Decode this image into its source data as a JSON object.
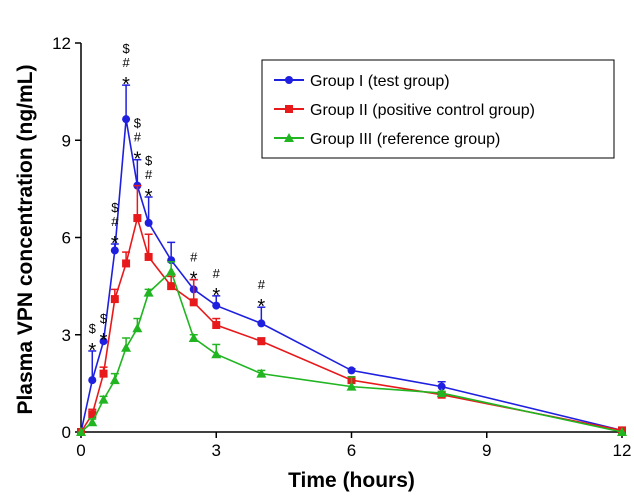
{
  "chart_data": {
    "type": "line",
    "title": "",
    "xlabel": "Time (hours)",
    "ylabel": "Plasma VPN concentration (ng/mL)",
    "xlim": [
      0,
      12
    ],
    "ylim": [
      0,
      12
    ],
    "xticks": [
      0,
      3,
      6,
      9,
      12
    ],
    "yticks": [
      0,
      3,
      6,
      9,
      12
    ],
    "x_tick_labels": [
      "0",
      "3",
      "6",
      "9",
      "12"
    ],
    "y_tick_labels": [
      "0",
      "3",
      "6",
      "9",
      "12"
    ],
    "grid": false,
    "legend_position": "top-right",
    "series": [
      {
        "name": "Group I (test group)",
        "color": "#1f1fe0",
        "marker": "circle",
        "x": [
          0,
          0.25,
          0.5,
          0.75,
          1,
          1.25,
          1.5,
          2,
          2.5,
          3,
          4,
          6,
          8,
          12
        ],
        "y": [
          0,
          1.6,
          2.8,
          5.6,
          9.65,
          7.6,
          6.45,
          5.3,
          4.4,
          3.9,
          3.35,
          1.9,
          1.4,
          0.05
        ],
        "err": [
          0,
          0.9,
          0,
          0.2,
          1.05,
          0.8,
          0.8,
          0.55,
          0.3,
          0.3,
          0.5,
          0.05,
          0.15,
          0
        ]
      },
      {
        "name": "Group II (positive control group)",
        "color": "#e8191b",
        "marker": "square",
        "x": [
          0,
          0.25,
          0.5,
          0.75,
          1,
          1.25,
          1.5,
          2,
          2.5,
          3,
          4,
          6,
          8,
          12
        ],
        "y": [
          0,
          0.55,
          1.8,
          4.1,
          5.2,
          6.6,
          5.4,
          4.5,
          4.0,
          3.3,
          2.8,
          1.6,
          1.15,
          0.05
        ],
        "err": [
          0,
          0.15,
          0.2,
          0.3,
          0.35,
          1.0,
          0.7,
          0.3,
          0.7,
          0.2,
          0.1,
          0.1,
          0.05,
          0
        ]
      },
      {
        "name": "Group III (reference group)",
        "color": "#21b521",
        "marker": "triangle",
        "x": [
          0,
          0.25,
          0.5,
          0.75,
          1,
          1.25,
          1.5,
          2,
          2.5,
          3,
          4,
          6,
          8,
          12
        ],
        "y": [
          0,
          0.3,
          1.0,
          1.6,
          2.6,
          3.2,
          4.3,
          4.95,
          2.9,
          2.4,
          1.8,
          1.4,
          1.2,
          0
        ],
        "err": [
          0,
          0.1,
          0.1,
          0.2,
          0.3,
          0.3,
          0.1,
          0.3,
          0.1,
          0.3,
          0.1,
          0.3,
          0.05,
          0
        ]
      }
    ],
    "annotations": [
      {
        "x": 0.25,
        "labels": [
          "$",
          "*"
        ],
        "y": 2.5
      },
      {
        "x": 0.5,
        "labels": [
          "$",
          "*"
        ],
        "y": 2.8
      },
      {
        "x": 0.75,
        "labels": [
          "$",
          "#",
          "*"
        ],
        "y": 5.8
      },
      {
        "x": 1,
        "labels": [
          "$",
          "#",
          "*"
        ],
        "y": 10.7
      },
      {
        "x": 1.25,
        "labels": [
          "$",
          "#",
          "*"
        ],
        "y": 8.4
      },
      {
        "x": 1.5,
        "labels": [
          "$",
          "#",
          "*"
        ],
        "y": 7.25
      },
      {
        "x": 2.5,
        "labels": [
          "#",
          "*"
        ],
        "y": 4.7
      },
      {
        "x": 3,
        "labels": [
          "#",
          "*"
        ],
        "y": 4.2
      },
      {
        "x": 4,
        "labels": [
          "#",
          "*"
        ],
        "y": 3.85
      }
    ]
  }
}
